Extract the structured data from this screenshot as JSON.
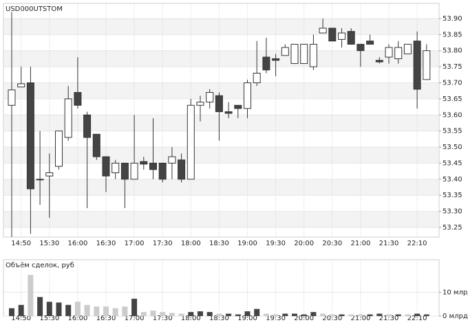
{
  "chart_data": [
    {
      "type": "candlestick",
      "title": "USD000UTSTOM",
      "categories": [
        null,
        "14:50",
        null,
        null,
        "15:30",
        null,
        null,
        "16:00",
        null,
        null,
        "16:30",
        null,
        null,
        "17:00",
        null,
        null,
        "17:30",
        null,
        null,
        "18:00",
        null,
        null,
        "18:30",
        null,
        null,
        "19:00",
        null,
        null,
        "19:30",
        null,
        null,
        "20:00",
        null,
        null,
        "20:30",
        null,
        null,
        "21:00",
        null,
        null,
        "21:30",
        null,
        null,
        "22:10",
        null
      ],
      "open": [
        53.63,
        53.687,
        53.7,
        53.4,
        53.41,
        53.44,
        53.53,
        53.67,
        53.6,
        53.54,
        53.47,
        53.42,
        53.45,
        53.4,
        53.455,
        53.45,
        53.45,
        53.45,
        53.46,
        53.4,
        53.63,
        53.64,
        53.66,
        53.61,
        53.63,
        53.62,
        53.7,
        53.78,
        53.775,
        53.785,
        53.76,
        53.76,
        53.75,
        53.855,
        53.87,
        53.835,
        53.86,
        53.82,
        53.83,
        53.77,
        53.78,
        53.775,
        53.79,
        53.83,
        53.71
      ],
      "high": [
        53.92,
        53.75,
        53.75,
        53.55,
        53.48,
        53.55,
        53.69,
        53.78,
        53.61,
        53.54,
        53.47,
        53.46,
        53.45,
        53.6,
        53.47,
        53.59,
        53.45,
        53.5,
        53.48,
        53.65,
        53.66,
        53.68,
        53.67,
        53.64,
        53.63,
        53.71,
        53.83,
        53.84,
        53.79,
        53.82,
        53.82,
        53.82,
        53.85,
        53.9,
        53.87,
        53.87,
        53.87,
        53.82,
        53.85,
        53.78,
        53.82,
        53.83,
        53.82,
        53.86,
        53.82
      ],
      "low": [
        53.22,
        53.687,
        53.23,
        53.32,
        53.28,
        53.43,
        53.52,
        53.62,
        53.31,
        53.46,
        53.36,
        53.4,
        53.31,
        53.4,
        53.43,
        53.4,
        53.39,
        53.4,
        53.39,
        53.4,
        53.58,
        53.62,
        53.52,
        53.59,
        53.59,
        53.59,
        53.69,
        53.73,
        53.72,
        53.785,
        53.76,
        53.76,
        53.74,
        53.855,
        53.83,
        53.81,
        53.82,
        53.75,
        53.82,
        53.76,
        53.76,
        53.76,
        53.79,
        53.62,
        53.71
      ],
      "close": [
        53.678,
        53.697,
        53.37,
        53.4,
        53.42,
        53.55,
        53.65,
        53.63,
        53.53,
        53.47,
        53.41,
        53.45,
        53.4,
        53.45,
        53.447,
        53.43,
        53.4,
        53.47,
        53.4,
        53.63,
        53.64,
        53.67,
        53.61,
        53.605,
        53.62,
        53.7,
        53.73,
        53.74,
        53.77,
        53.81,
        53.82,
        53.82,
        53.82,
        53.87,
        53.83,
        53.855,
        53.82,
        53.8,
        53.82,
        53.765,
        53.81,
        53.81,
        53.82,
        53.68,
        53.8
      ],
      "up_color": "#ffffff",
      "down_color": "#444444",
      "ylim": [
        53.22,
        53.947
      ],
      "yticks": [
        {
          "value": 53.25,
          "label": "53.25"
        },
        {
          "value": 53.3,
          "label": "53.30"
        },
        {
          "value": 53.35,
          "label": "53.35"
        },
        {
          "value": 53.4,
          "label": "53.40"
        },
        {
          "value": 53.45,
          "label": "53.45"
        },
        {
          "value": 53.5,
          "label": "53.50"
        },
        {
          "value": 53.55,
          "label": "53.55"
        },
        {
          "value": 53.6,
          "label": "53.60"
        },
        {
          "value": 53.65,
          "label": "53.65"
        },
        {
          "value": 53.7,
          "label": "53.70"
        },
        {
          "value": 53.75,
          "label": "53.75"
        },
        {
          "value": 53.8,
          "label": "53.80"
        },
        {
          "value": 53.85,
          "label": "53.85"
        },
        {
          "value": 53.9,
          "label": "53.90"
        }
      ],
      "grid": true
    },
    {
      "type": "bar",
      "title": "Объём сделок, руб",
      "categories": [
        null,
        "14:50",
        null,
        null,
        "15:30",
        null,
        null,
        "16:00",
        null,
        null,
        "16:30",
        null,
        null,
        "17:00",
        null,
        null,
        "17:30",
        null,
        null,
        "18:00",
        null,
        null,
        "18:30",
        null,
        null,
        "19:00",
        null,
        null,
        "19:30",
        null,
        null,
        "20:00",
        null,
        null,
        "20:30",
        null,
        null,
        "21:00",
        null,
        null,
        "21:30",
        null,
        null,
        "22:10",
        null
      ],
      "values": [
        3.3,
        4.7,
        17.3,
        8,
        6,
        5.7,
        4.7,
        6,
        4.7,
        4,
        4,
        3.3,
        4,
        7.3,
        1.7,
        2.3,
        1.7,
        1.3,
        1,
        1.7,
        2,
        1.7,
        1,
        1,
        0.7,
        2,
        3,
        1,
        0.7,
        1,
        1,
        0.7,
        1.7,
        1,
        0.7,
        0.7,
        0.7,
        0.7,
        0.7,
        1,
        0.7,
        0.7,
        0.7,
        1,
        0.7
      ],
      "colors": [
        "#444",
        "#444",
        "#ccc",
        "#444",
        "#444",
        "#444",
        "#444",
        "#ccc",
        "#ccc",
        "#ccc",
        "#ccc",
        "#ccc",
        "#ccc",
        "#444",
        "#ccc",
        "#ccc",
        "#ccc",
        "#ccc",
        "#ccc",
        "#444",
        "#444",
        "#444",
        "#ccc",
        "#444",
        "#444",
        "#444",
        "#444",
        "#ccc",
        "#ccc",
        "#444",
        "#444",
        "#444",
        "#444",
        "#ccc",
        "#ccc",
        "#444",
        "#ccc",
        "#ccc",
        "#444",
        "#444",
        "#ccc",
        "#444",
        "#ccc",
        "#444",
        "#444"
      ],
      "ylim": [
        0,
        23.7
      ],
      "yticks": [
        {
          "value": 10,
          "label": "10 млрд"
        },
        {
          "value": 0,
          "label": "0 млрд"
        }
      ],
      "grid": true
    }
  ]
}
